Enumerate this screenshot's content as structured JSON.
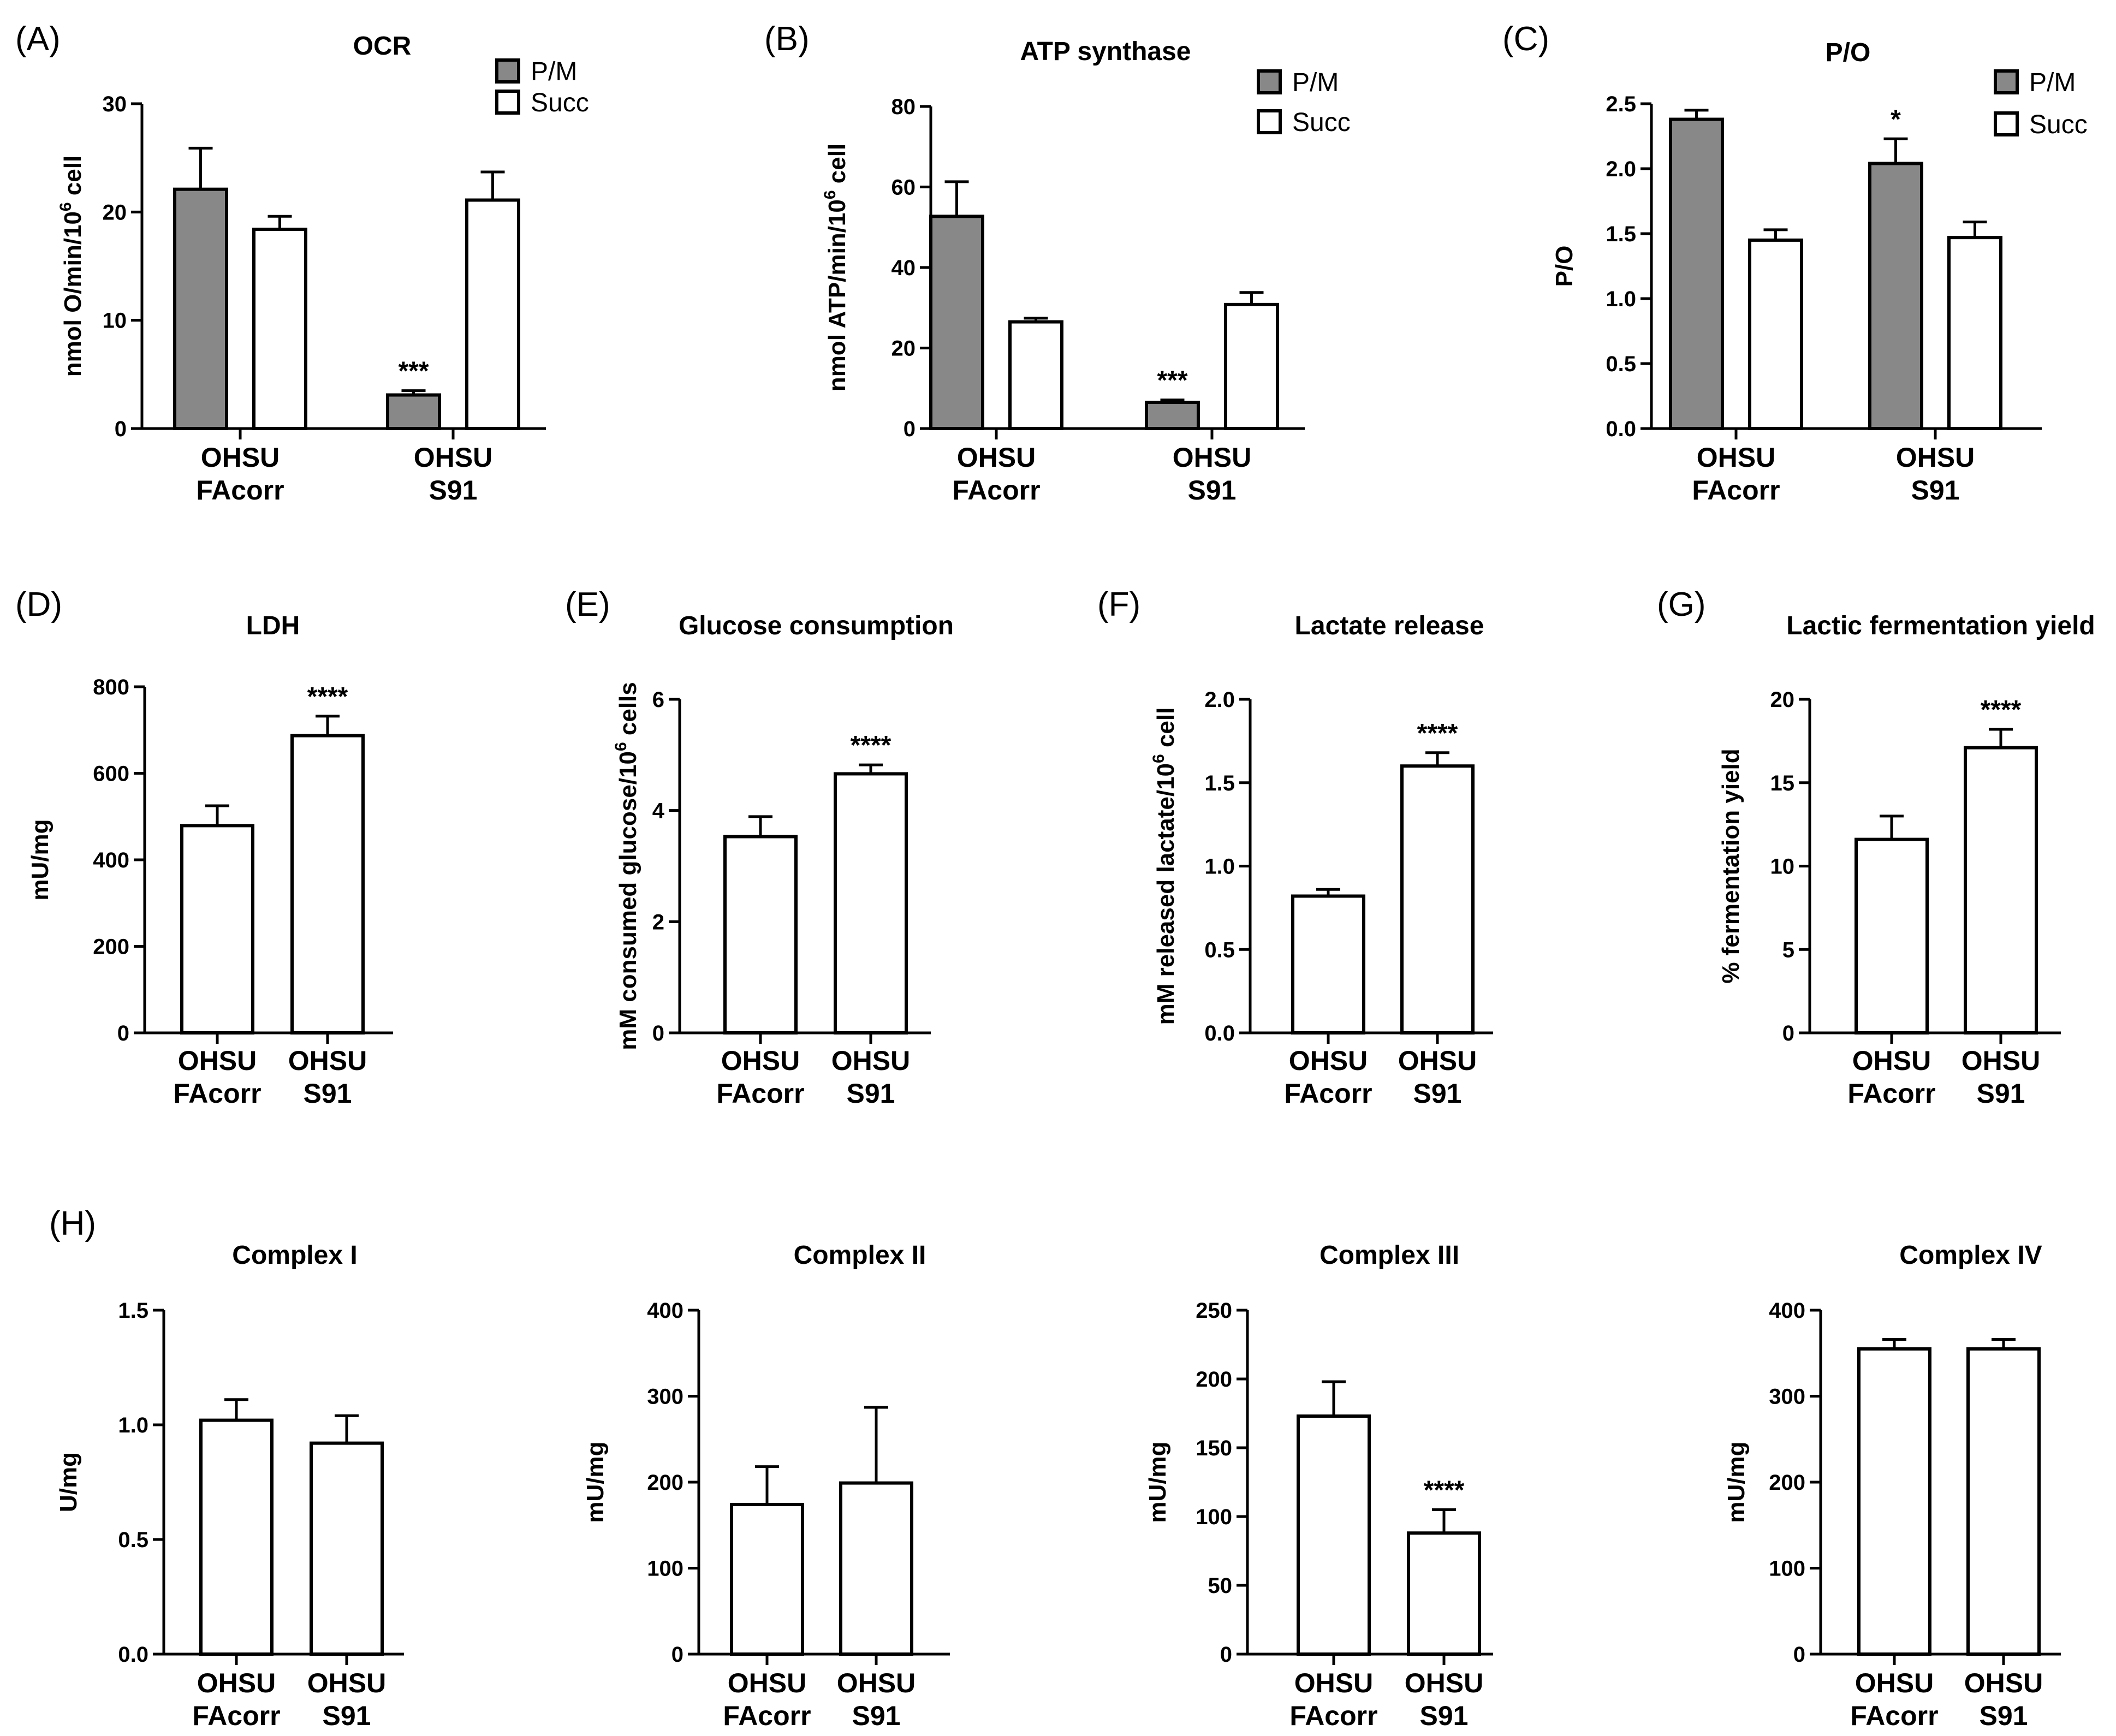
{
  "colors": {
    "pm": "#888888",
    "succ": "#ffffff"
  },
  "chart_data": [
    {
      "id": "A",
      "letter": "(A)",
      "type": "bar",
      "title": "OCR",
      "ylabel": {
        "base": "nmol O/min/10",
        "sup": "6",
        "tail": " cell"
      },
      "ylim": [
        0,
        30
      ],
      "yticks": [
        "0",
        "10",
        "20",
        "30"
      ],
      "ytick_values": [
        0,
        10,
        20,
        30
      ],
      "categories": [
        [
          "OHSU",
          "FAcorr"
        ],
        [
          "OHSU",
          "S91"
        ]
      ],
      "legend": [
        "P/M",
        "Succ"
      ],
      "series": [
        {
          "name": "P/M",
          "color": "pm",
          "values": [
            22.1,
            3.1
          ],
          "errors": [
            3.8,
            0.4
          ],
          "sig": [
            "",
            "***"
          ]
        },
        {
          "name": "Succ",
          "color": "succ",
          "values": [
            18.4,
            21.1
          ],
          "errors": [
            1.2,
            2.6
          ],
          "sig": [
            "",
            ""
          ]
        }
      ]
    },
    {
      "id": "B",
      "letter": "(B)",
      "type": "bar",
      "title": "ATP synthase",
      "ylabel": {
        "base": "nmol ATP/min/10",
        "sup": "6",
        "tail": " cell"
      },
      "ylim": [
        0,
        80
      ],
      "yticks": [
        "0",
        "20",
        "40",
        "60",
        "80"
      ],
      "ytick_values": [
        0,
        20,
        40,
        60,
        80
      ],
      "categories": [
        [
          "OHSU",
          "FAcorr"
        ],
        [
          "OHSU",
          "S91"
        ]
      ],
      "legend": [
        "P/M",
        "Succ"
      ],
      "series": [
        {
          "name": "P/M",
          "color": "pm",
          "values": [
            52.7,
            6.5
          ],
          "errors": [
            8.6,
            0.6
          ],
          "sig": [
            "",
            "***"
          ]
        },
        {
          "name": "Succ",
          "color": "succ",
          "values": [
            26.5,
            30.8
          ],
          "errors": [
            0.9,
            3.0
          ],
          "sig": [
            "",
            ""
          ]
        }
      ]
    },
    {
      "id": "C",
      "letter": "(C)",
      "type": "bar",
      "title": "P/O",
      "ylabel": {
        "base": "P/O",
        "sup": "",
        "tail": ""
      },
      "ylim": [
        0,
        2.5
      ],
      "yticks": [
        "0.0",
        "0.5",
        "1.0",
        "1.5",
        "2.0",
        "2.5"
      ],
      "ytick_values": [
        0,
        0.5,
        1.0,
        1.5,
        2.0,
        2.5
      ],
      "categories": [
        [
          "OHSU",
          "FAcorr"
        ],
        [
          "OHSU",
          "S91"
        ]
      ],
      "legend": [
        "P/M",
        "Succ"
      ],
      "series": [
        {
          "name": "P/M",
          "color": "pm",
          "values": [
            2.38,
            2.04
          ],
          "errors": [
            0.07,
            0.19
          ],
          "sig": [
            "",
            "*"
          ]
        },
        {
          "name": "Succ",
          "color": "succ",
          "values": [
            1.45,
            1.47
          ],
          "errors": [
            0.08,
            0.12
          ],
          "sig": [
            "",
            ""
          ]
        }
      ]
    },
    {
      "id": "D",
      "letter": "(D)",
      "type": "bar",
      "title": "LDH",
      "ylabel": {
        "base": "mU/mg",
        "sup": "",
        "tail": ""
      },
      "ylim": [
        0,
        800
      ],
      "yticks": [
        "0",
        "200",
        "400",
        "600",
        "800"
      ],
      "ytick_values": [
        0,
        200,
        400,
        600,
        800
      ],
      "categories": [
        [
          "OHSU",
          "FAcorr"
        ],
        [
          "OHSU",
          "S91"
        ]
      ],
      "legend": [],
      "series": [
        {
          "name": "",
          "color": "succ",
          "values": [
            479,
            687
          ],
          "errors": [
            46,
            45
          ],
          "sig": [
            "",
            "****"
          ]
        }
      ]
    },
    {
      "id": "E",
      "letter": "(E)",
      "type": "bar",
      "title": "Glucose consumption",
      "ylabel": {
        "base": "mM consumed glucose/10",
        "sup": "6",
        "tail": " cells"
      },
      "ylim": [
        0,
        6
      ],
      "yticks": [
        "0",
        "2",
        "4",
        "6"
      ],
      "ytick_values": [
        0,
        2,
        4,
        6
      ],
      "categories": [
        [
          "OHSU",
          "FAcorr"
        ],
        [
          "OHSU",
          "S91"
        ]
      ],
      "legend": [],
      "series": [
        {
          "name": "",
          "color": "succ",
          "values": [
            3.53,
            4.66
          ],
          "errors": [
            0.36,
            0.16
          ],
          "sig": [
            "",
            "****"
          ]
        }
      ]
    },
    {
      "id": "F",
      "letter": "(F)",
      "type": "bar",
      "title": "Lactate release",
      "ylabel": {
        "base": "mM released lactate/10",
        "sup": "6",
        "tail": " cell"
      },
      "ylim": [
        0,
        2.0
      ],
      "yticks": [
        "0.0",
        "0.5",
        "1.0",
        "1.5",
        "2.0"
      ],
      "ytick_values": [
        0,
        0.5,
        1.0,
        1.5,
        2.0
      ],
      "categories": [
        [
          "OHSU",
          "FAcorr"
        ],
        [
          "OHSU",
          "S91"
        ]
      ],
      "legend": [],
      "series": [
        {
          "name": "",
          "color": "succ",
          "values": [
            0.82,
            1.6
          ],
          "errors": [
            0.04,
            0.08
          ],
          "sig": [
            "",
            "****"
          ]
        }
      ]
    },
    {
      "id": "G",
      "letter": "(G)",
      "type": "bar",
      "title": "Lactic fermentation yield",
      "ylabel": {
        "base": "% fermentation yield",
        "sup": "",
        "tail": ""
      },
      "ylim": [
        0,
        20
      ],
      "yticks": [
        "0",
        "5",
        "10",
        "15",
        "20"
      ],
      "ytick_values": [
        0,
        5,
        10,
        15,
        20
      ],
      "categories": [
        [
          "OHSU",
          "FAcorr"
        ],
        [
          "OHSU",
          "S91"
        ]
      ],
      "legend": [],
      "series": [
        {
          "name": "",
          "color": "succ",
          "values": [
            11.6,
            17.1
          ],
          "errors": [
            1.4,
            1.1
          ],
          "sig": [
            "",
            "****"
          ]
        }
      ]
    },
    {
      "id": "H1",
      "letter": "(H)",
      "type": "bar",
      "title": "Complex I",
      "ylabel": {
        "base": "U/mg",
        "sup": "",
        "tail": ""
      },
      "ylim": [
        0,
        1.5
      ],
      "yticks": [
        "0.0",
        "0.5",
        "1.0",
        "1.5"
      ],
      "ytick_values": [
        0,
        0.5,
        1.0,
        1.5
      ],
      "categories": [
        [
          "OHSU",
          "FAcorr"
        ],
        [
          "OHSU",
          "S91"
        ]
      ],
      "legend": [],
      "series": [
        {
          "name": "",
          "color": "succ",
          "values": [
            1.02,
            0.92
          ],
          "errors": [
            0.09,
            0.12
          ],
          "sig": [
            "",
            ""
          ]
        }
      ]
    },
    {
      "id": "H2",
      "letter": "",
      "type": "bar",
      "title": "Complex II",
      "ylabel": {
        "base": "mU/mg",
        "sup": "",
        "tail": ""
      },
      "ylim": [
        0,
        400
      ],
      "yticks": [
        "0",
        "100",
        "200",
        "300",
        "400"
      ],
      "ytick_values": [
        0,
        100,
        200,
        300,
        400
      ],
      "categories": [
        [
          "OHSU",
          "FAcorr"
        ],
        [
          "OHSU",
          "S91"
        ]
      ],
      "legend": [],
      "series": [
        {
          "name": "",
          "color": "succ",
          "values": [
            174,
            199
          ],
          "errors": [
            44,
            88
          ],
          "sig": [
            "",
            ""
          ]
        }
      ]
    },
    {
      "id": "H3",
      "letter": "",
      "type": "bar",
      "title": "Complex III",
      "ylabel": {
        "base": "mU/mg",
        "sup": "",
        "tail": ""
      },
      "ylim": [
        0,
        250
      ],
      "yticks": [
        "0",
        "50",
        "100",
        "150",
        "200",
        "250"
      ],
      "ytick_values": [
        0,
        50,
        100,
        150,
        200,
        250
      ],
      "categories": [
        [
          "OHSU",
          "FAcorr"
        ],
        [
          "OHSU",
          "S91"
        ]
      ],
      "legend": [],
      "series": [
        {
          "name": "",
          "color": "succ",
          "values": [
            173,
            88
          ],
          "errors": [
            25,
            17
          ],
          "sig": [
            "",
            "****"
          ]
        }
      ]
    },
    {
      "id": "H4",
      "letter": "",
      "type": "bar",
      "title": "Complex IV",
      "ylabel": {
        "base": "mU/mg",
        "sup": "",
        "tail": ""
      },
      "ylim": [
        0,
        400
      ],
      "yticks": [
        "0",
        "100",
        "200",
        "300",
        "400"
      ],
      "ytick_values": [
        0,
        100,
        200,
        300,
        400
      ],
      "categories": [
        [
          "OHSU",
          "FAcorr"
        ],
        [
          "OHSU",
          "S91"
        ]
      ],
      "legend": [],
      "series": [
        {
          "name": "",
          "color": "succ",
          "values": [
            355,
            355
          ],
          "errors": [
            11,
            11
          ],
          "sig": [
            "",
            ""
          ]
        }
      ]
    }
  ]
}
